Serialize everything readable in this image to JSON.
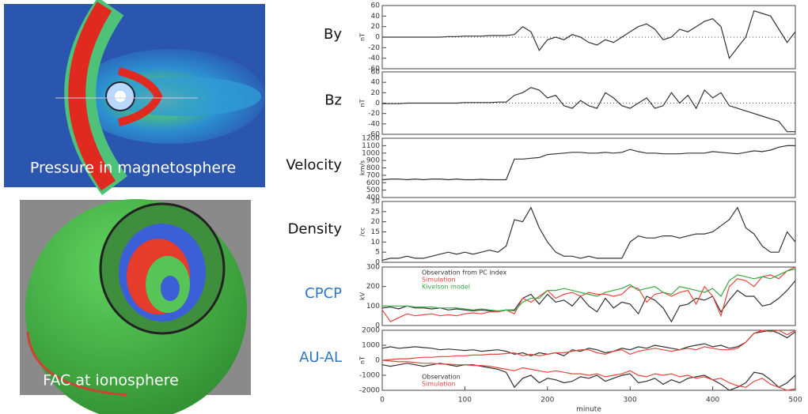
{
  "figures": [
    {
      "caption": "Pressure in magnetosphere"
    },
    {
      "caption": "FAC at ionosphere"
    }
  ],
  "chart_data": [
    {
      "type": "line",
      "panel_label": "By",
      "label_color": "#111111",
      "y_unit": "nT",
      "zero_line": true,
      "x": [
        0,
        10,
        20,
        30,
        40,
        50,
        60,
        70,
        80,
        90,
        100,
        110,
        120,
        130,
        140,
        150,
        160,
        170,
        180,
        190,
        200,
        210,
        220,
        230,
        240,
        250,
        260,
        270,
        280,
        290,
        300,
        310,
        320,
        330,
        340,
        350,
        360,
        370,
        380,
        390,
        400,
        410,
        420,
        430,
        440,
        450,
        460,
        470,
        480,
        490,
        500
      ],
      "xlim": [
        0,
        500
      ],
      "ylim": [
        -60,
        60
      ],
      "yticks": [
        -60,
        -40,
        -20,
        0,
        20,
        40,
        60
      ],
      "series": [
        {
          "color": "#333333",
          "values": [
            0,
            0,
            0,
            0,
            0,
            0,
            0,
            0,
            1,
            1,
            2,
            2,
            2,
            3,
            3,
            3,
            5,
            20,
            10,
            -25,
            -5,
            0,
            -5,
            5,
            0,
            -10,
            -15,
            -5,
            -10,
            0,
            10,
            20,
            25,
            15,
            -5,
            0,
            15,
            10,
            20,
            30,
            35,
            20,
            -40,
            -20,
            0,
            50,
            45,
            40,
            15,
            -10,
            10
          ]
        }
      ]
    },
    {
      "type": "line",
      "panel_label": "Bz",
      "label_color": "#111111",
      "y_unit": "nT",
      "zero_line": true,
      "x": [
        0,
        10,
        20,
        30,
        40,
        50,
        60,
        70,
        80,
        90,
        100,
        110,
        120,
        130,
        140,
        150,
        160,
        170,
        180,
        190,
        200,
        210,
        220,
        230,
        240,
        250,
        260,
        270,
        280,
        290,
        300,
        310,
        320,
        330,
        340,
        350,
        360,
        370,
        380,
        390,
        400,
        410,
        420,
        430,
        440,
        450,
        460,
        470,
        480,
        490,
        500
      ],
      "xlim": [
        0,
        500
      ],
      "ylim": [
        -60,
        60
      ],
      "yticks": [
        -60,
        -40,
        -20,
        0,
        20,
        40,
        60
      ],
      "series": [
        {
          "color": "#333333",
          "values": [
            -1,
            -1,
            -1,
            0,
            0,
            0,
            0,
            0,
            0,
            0,
            1,
            1,
            1,
            1,
            2,
            2,
            15,
            20,
            30,
            25,
            10,
            15,
            -5,
            -10,
            5,
            -5,
            -10,
            20,
            10,
            -5,
            -10,
            0,
            10,
            -10,
            -5,
            20,
            0,
            15,
            -10,
            25,
            10,
            20,
            -5,
            -10,
            -15,
            -20,
            -25,
            -30,
            -35,
            -55,
            -55
          ]
        }
      ]
    },
    {
      "type": "line",
      "panel_label": "Velocity",
      "label_color": "#111111",
      "y_unit": "km/s",
      "zero_line": false,
      "x": [
        0,
        10,
        20,
        30,
        40,
        50,
        60,
        70,
        80,
        90,
        100,
        110,
        120,
        130,
        140,
        150,
        160,
        170,
        180,
        190,
        200,
        210,
        220,
        230,
        240,
        250,
        260,
        270,
        280,
        290,
        300,
        310,
        320,
        330,
        340,
        350,
        360,
        370,
        380,
        390,
        400,
        410,
        420,
        430,
        440,
        450,
        460,
        470,
        480,
        490,
        500
      ],
      "xlim": [
        0,
        500
      ],
      "ylim": [
        400,
        1200
      ],
      "yticks": [
        400,
        500,
        600,
        700,
        800,
        900,
        1000,
        1100,
        1200
      ],
      "series": [
        {
          "color": "#333333",
          "values": [
            640,
            650,
            650,
            640,
            650,
            640,
            650,
            650,
            640,
            650,
            640,
            640,
            645,
            640,
            640,
            640,
            920,
            920,
            930,
            940,
            980,
            990,
            1000,
            1010,
            1010,
            1000,
            1000,
            1010,
            1000,
            1010,
            1050,
            1020,
            1000,
            1000,
            990,
            990,
            990,
            1000,
            1000,
            1000,
            1020,
            1010,
            1000,
            990,
            1010,
            1030,
            1020,
            1040,
            1080,
            1100,
            1100
          ]
        }
      ]
    },
    {
      "type": "line",
      "panel_label": "Density",
      "label_color": "#111111",
      "y_unit": "/cc",
      "zero_line": false,
      "x": [
        0,
        10,
        20,
        30,
        40,
        50,
        60,
        70,
        80,
        90,
        100,
        110,
        120,
        130,
        140,
        150,
        160,
        170,
        180,
        190,
        200,
        210,
        220,
        230,
        240,
        250,
        260,
        270,
        280,
        290,
        300,
        310,
        320,
        330,
        340,
        350,
        360,
        370,
        380,
        390,
        400,
        410,
        420,
        430,
        440,
        450,
        460,
        470,
        480,
        490,
        500
      ],
      "xlim": [
        0,
        500
      ],
      "ylim": [
        0,
        30
      ],
      "yticks": [
        0,
        5,
        10,
        15,
        20,
        25,
        30
      ],
      "series": [
        {
          "color": "#333333",
          "values": [
            1,
            2,
            2,
            3,
            2,
            2,
            3,
            4,
            5,
            4,
            5,
            4,
            5,
            6,
            5,
            8,
            21,
            20,
            27,
            17,
            10,
            5,
            3,
            3,
            2,
            3,
            2,
            2,
            2,
            2,
            10,
            13,
            12,
            12,
            13,
            13,
            12,
            13,
            14,
            14,
            15,
            18,
            21,
            27,
            17,
            14,
            8,
            5,
            5,
            15,
            10
          ]
        }
      ]
    },
    {
      "type": "line",
      "panel_label": "CPCP",
      "label_color": "#2e75c6",
      "y_unit": "kV",
      "zero_line": false,
      "legend": "upper left",
      "x": [
        0,
        10,
        20,
        30,
        40,
        50,
        60,
        70,
        80,
        90,
        100,
        110,
        120,
        130,
        140,
        150,
        160,
        170,
        180,
        190,
        200,
        210,
        220,
        230,
        240,
        250,
        260,
        270,
        280,
        290,
        300,
        310,
        320,
        330,
        340,
        350,
        360,
        370,
        380,
        390,
        400,
        410,
        420,
        430,
        440,
        450,
        460,
        470,
        480,
        490,
        500
      ],
      "xlim": [
        0,
        500
      ],
      "ylim": [
        0,
        300
      ],
      "yticks": [
        0,
        100,
        200,
        300
      ],
      "series": [
        {
          "name": "Observation from PC index",
          "color": "#333333",
          "values": [
            90,
            95,
            85,
            100,
            90,
            90,
            85,
            90,
            80,
            85,
            80,
            75,
            80,
            75,
            70,
            80,
            80,
            140,
            160,
            110,
            160,
            120,
            130,
            100,
            150,
            100,
            70,
            140,
            90,
            120,
            110,
            60,
            150,
            130,
            90,
            20,
            100,
            110,
            140,
            130,
            150,
            70,
            130,
            180,
            150,
            150,
            100,
            110,
            140,
            180,
            230
          ]
        },
        {
          "name": "Simulation",
          "color": "#e8453c",
          "values": [
            80,
            20,
            40,
            60,
            50,
            55,
            60,
            50,
            55,
            50,
            60,
            65,
            60,
            70,
            70,
            80,
            60,
            140,
            120,
            150,
            180,
            140,
            160,
            170,
            150,
            170,
            160,
            160,
            150,
            160,
            200,
            190,
            120,
            160,
            170,
            150,
            170,
            180,
            110,
            200,
            150,
            50,
            200,
            240,
            230,
            200,
            250,
            260,
            240,
            280,
            300
          ]
        },
        {
          "name": "Kivelson model",
          "color": "#3aa845",
          "values": [
            100,
            100,
            100,
            100,
            95,
            95,
            95,
            90,
            90,
            90,
            85,
            80,
            85,
            80,
            75,
            80,
            75,
            120,
            140,
            140,
            180,
            180,
            190,
            180,
            170,
            160,
            150,
            170,
            180,
            190,
            210,
            180,
            190,
            200,
            170,
            160,
            200,
            190,
            180,
            170,
            190,
            150,
            230,
            260,
            250,
            240,
            250,
            240,
            260,
            280,
            290
          ]
        }
      ]
    },
    {
      "type": "line",
      "panel_label": "AU-AL",
      "label_color": "#2e75c6",
      "y_unit": "nT",
      "zero_line": false,
      "legend": "lower left",
      "xlabel": "minute",
      "x": [
        0,
        10,
        20,
        30,
        40,
        50,
        60,
        70,
        80,
        90,
        100,
        110,
        120,
        130,
        140,
        150,
        160,
        170,
        180,
        190,
        200,
        210,
        220,
        230,
        240,
        250,
        260,
        270,
        280,
        290,
        300,
        310,
        320,
        330,
        340,
        350,
        360,
        370,
        380,
        390,
        400,
        410,
        420,
        430,
        440,
        450,
        460,
        470,
        480,
        490,
        500
      ],
      "xlim": [
        0,
        500
      ],
      "ylim": [
        -2000,
        2000
      ],
      "yticks": [
        -2000,
        -1000,
        0,
        1000,
        2000
      ],
      "xticks": [
        0,
        100,
        200,
        300,
        400,
        500
      ],
      "series": [
        {
          "name": "Observation",
          "color": "#333333",
          "values": [
            800,
            900,
            800,
            850,
            900,
            850,
            800,
            700,
            750,
            700,
            650,
            700,
            600,
            650,
            700,
            600,
            400,
            500,
            300,
            500,
            400,
            500,
            300,
            700,
            600,
            800,
            700,
            500,
            600,
            800,
            700,
            900,
            800,
            1000,
            900,
            800,
            700,
            900,
            1000,
            1100,
            900,
            1000,
            800,
            900,
            1200,
            1800,
            1900,
            2000,
            1800,
            1500,
            1900
          ],
          "lower": [
            -300,
            -400,
            -300,
            -200,
            -300,
            -400,
            -300,
            -200,
            -300,
            -400,
            -300,
            -300,
            -400,
            -500,
            -600,
            -800,
            -1800,
            -1200,
            -1000,
            -1500,
            -1200,
            -1300,
            -1500,
            -1400,
            -1100,
            -1200,
            -1000,
            -1400,
            -1200,
            -1000,
            -900,
            -1500,
            -1400,
            -1200,
            -1600,
            -1300,
            -1500,
            -1200,
            -1100,
            -1000,
            -1300,
            -1600,
            -2000,
            -1800,
            -1500,
            -800,
            -900,
            -1300,
            -1800,
            -1500,
            -1000
          ]
        },
        {
          "name": "Simulation",
          "color": "#e8453c",
          "values": [
            0,
            50,
            100,
            100,
            150,
            200,
            200,
            250,
            250,
            300,
            300,
            350,
            350,
            400,
            400,
            450,
            500,
            300,
            400,
            300,
            400,
            500,
            500,
            600,
            700,
            700,
            500,
            400,
            600,
            700,
            400,
            600,
            700,
            800,
            700,
            600,
            700,
            800,
            700,
            900,
            800,
            700,
            700,
            800,
            1200,
            1800,
            2000,
            1900,
            2000,
            1700,
            2000
          ],
          "lower": [
            0,
            -50,
            -100,
            -100,
            -150,
            -200,
            -200,
            -250,
            -250,
            -300,
            -300,
            -350,
            -350,
            -400,
            -500,
            -600,
            -700,
            -500,
            -600,
            -700,
            -800,
            -700,
            -800,
            -900,
            -900,
            -1000,
            -900,
            -1100,
            -1000,
            -900,
            -700,
            -1000,
            -1100,
            -900,
            -1000,
            -900,
            -1100,
            -1000,
            -1200,
            -1100,
            -1300,
            -1200,
            -1500,
            -1700,
            -1800,
            -1400,
            -1200,
            -1600,
            -1800,
            -2000,
            -1900
          ]
        }
      ]
    }
  ]
}
